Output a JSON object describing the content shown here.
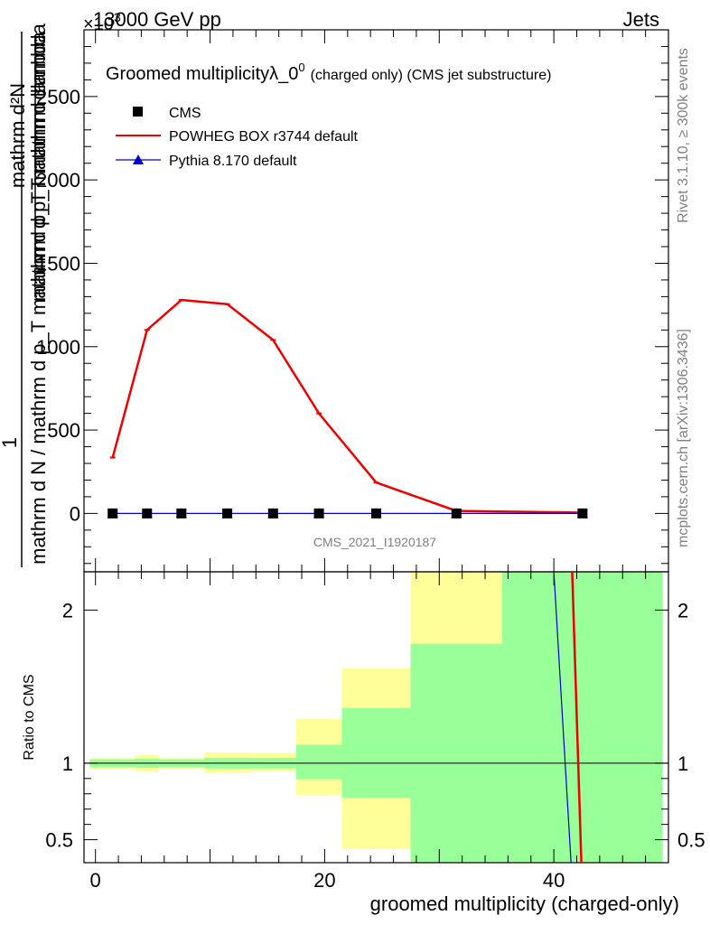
{
  "header": {
    "energy": "13000 GeV pp",
    "process": "Jets",
    "exponent": "×10",
    "exponent_power": "3"
  },
  "side_labels": {
    "rivet": "Rivet 3.1.10, ≥ 300k events",
    "mcplots": "mcplots.cern.ch [arXiv:1306.3436]"
  },
  "analysis_id": "CMS_2021_I1920187",
  "colors": {
    "cms": "#000000",
    "powheg": "#ee0000",
    "pythia": "#0000cc",
    "band_inner": "#99ff99",
    "band_outer": "#ffff99"
  },
  "chart_data": [
    {
      "type": "line",
      "title": "Groomed multiplicityλ_0⁰ (charged only) (CMS jet substructure)",
      "title_main": "Groomed multiplicityλ_0",
      "title_sup": "0",
      "title_rest": "(charged only) (CMS jet substructure)",
      "ylabel_top": "1",
      "ylabel_bottom": "mathrm d N / mathrm d p_T mathrm d p_T mathrm d lambda",
      "ylabel_num": "mathrm d²N",
      "ylabel_den": "mathrm d p_T mathrm dlambda",
      "y_multiplier": "×10³",
      "ylim": [
        -350,
        2900
      ],
      "yticks": [
        0,
        500,
        1000,
        1500,
        2000,
        2500
      ],
      "ytick_labels": [
        "0",
        "500",
        "1000",
        "1500",
        "2000",
        "2500"
      ],
      "legend_position": "top-left",
      "series": [
        {
          "name": "CMS",
          "marker": "square",
          "x": [
            1.5,
            4.5,
            7.5,
            11.5,
            15.5,
            19.5,
            24.5,
            31.5,
            42.5
          ],
          "values": [
            0,
            0,
            0,
            0,
            0,
            0,
            0,
            0,
            0
          ]
        },
        {
          "name": "POWHEG BOX r3744 default",
          "marker": "line",
          "x": [
            1.5,
            4.5,
            7.5,
            11.5,
            15.5,
            19.5,
            24.5,
            31.5,
            42.5
          ],
          "values": [
            335,
            1100,
            1280,
            1255,
            1040,
            600,
            185,
            15,
            5
          ]
        },
        {
          "name": "Pythia 8.170 default",
          "marker": "triangle",
          "x": [
            1.5,
            4.5,
            7.5,
            11.5,
            15.5,
            19.5,
            24.5,
            31.5,
            42.5
          ],
          "values": [
            0,
            0,
            0,
            0,
            0,
            0,
            0,
            0,
            0
          ]
        }
      ]
    },
    {
      "type": "area",
      "ylabel": "Ratio to CMS",
      "xlabel": "groomed multiplicity (charged-only)",
      "xlim": [
        -1,
        50
      ],
      "xticks": [
        0,
        20,
        40
      ],
      "xtick_labels": [
        "0",
        "20",
        "40"
      ],
      "ylim": [
        0.35,
        2.25
      ],
      "yticks": [
        0.5,
        1,
        2
      ],
      "ytick_labels": [
        "0.5",
        "1",
        "2"
      ],
      "bands": [
        {
          "x0": -0.5,
          "x1": 3.5,
          "inner": [
            0.975,
            1.025
          ],
          "outer": [
            0.96,
            1.035
          ]
        },
        {
          "x0": 3.5,
          "x1": 5.5,
          "inner": [
            0.97,
            1.03
          ],
          "outer": [
            0.945,
            1.055
          ]
        },
        {
          "x0": 5.5,
          "x1": 9.5,
          "inner": [
            0.975,
            1.025
          ],
          "outer": [
            0.965,
            1.035
          ]
        },
        {
          "x0": 9.5,
          "x1": 13.5,
          "inner": [
            0.965,
            1.035
          ],
          "outer": [
            0.935,
            1.07
          ]
        },
        {
          "x0": 13.5,
          "x1": 17.5,
          "inner": [
            0.965,
            1.035
          ],
          "outer": [
            0.945,
            1.065
          ]
        },
        {
          "x0": 17.5,
          "x1": 21.5,
          "inner": [
            0.895,
            1.12
          ],
          "outer": [
            0.79,
            1.29
          ]
        },
        {
          "x0": 21.5,
          "x1": 27.5,
          "inner": [
            0.775,
            1.36
          ],
          "outer": [
            0.44,
            1.62
          ]
        },
        {
          "x0": 27.5,
          "x1": 35.5,
          "inner": [
            0.35,
            1.78
          ],
          "outer": [
            0.35,
            2.25
          ]
        },
        {
          "x0": 35.5,
          "x1": 49.5,
          "inner": [
            0.35,
            2.25
          ],
          "outer": [
            0.35,
            2.25
          ]
        }
      ],
      "ratio_lines": [
        {
          "name": "POWHEG BOX r3744 default",
          "x": [
            41.6,
            42.4
          ],
          "values": [
            2.25,
            0.35
          ]
        },
        {
          "name": "Pythia 8.170 default",
          "x": [
            40.0,
            41.5
          ],
          "values": [
            2.25,
            0.35
          ]
        }
      ]
    }
  ]
}
